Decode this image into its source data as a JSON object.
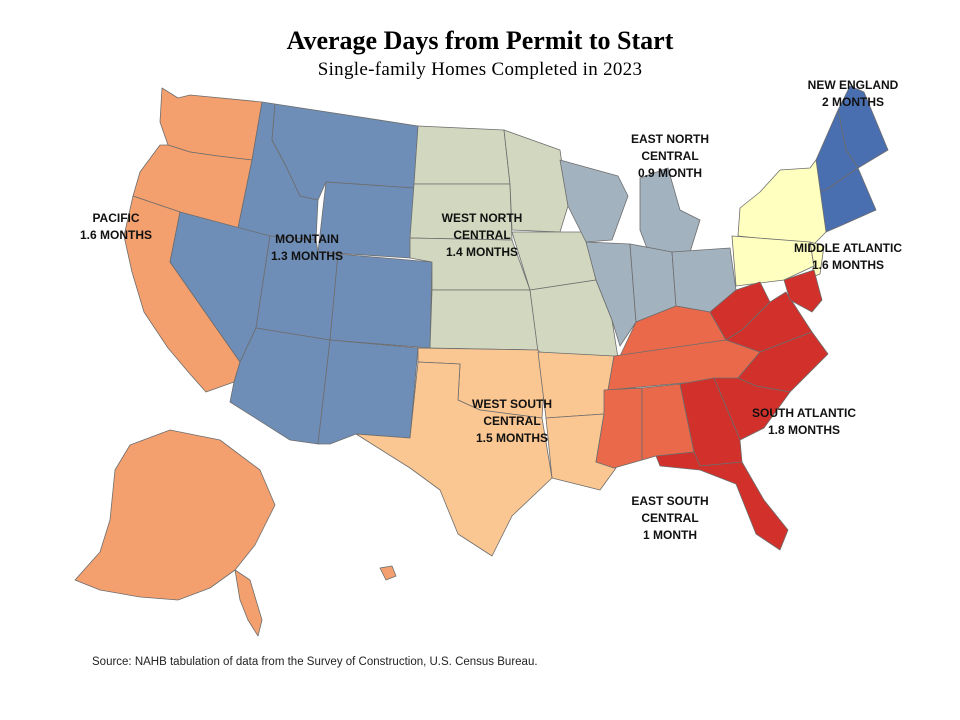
{
  "title": "Average Days from Permit to Start",
  "subtitle": "Single-family  Homes  Completed  in 2023",
  "source": "Source: NAHB tabulation of data from the Survey of Construction, U.S. Census Bureau.",
  "colors": {
    "pacific": "#F4A06E",
    "mountain": "#6E8EB8",
    "west_north_central": "#D2D8C0",
    "east_north_central": "#A3B2BF",
    "new_england": "#4A6FB0",
    "middle_atlantic": "#FFFFC0",
    "west_south_central": "#FAC691",
    "east_south_central": "#E9694A",
    "south_atlantic": "#D2302A"
  },
  "regions": {
    "pacific": {
      "name": "PACIFIC",
      "value": "1.6 MONTHS"
    },
    "mountain": {
      "name": "MOUNTAIN",
      "value": "1.3 MONTHS"
    },
    "west_north_central": {
      "name_line1": "WEST NORTH",
      "name_line2": "CENTRAL",
      "value": "1.4 MONTHS"
    },
    "east_north_central": {
      "name_line1": "EAST NORTH",
      "name_line2": "CENTRAL",
      "value": "0.9 MONTH"
    },
    "new_england": {
      "name": "NEW ENGLAND",
      "value": "2 MONTHS"
    },
    "middle_atlantic": {
      "name": "MIDDLE ATLANTIC",
      "value": "1.6 MONTHS"
    },
    "west_south_central": {
      "name_line1": "WEST SOUTH",
      "name_line2": "CENTRAL",
      "value": "1.5 MONTHS"
    },
    "east_south_central": {
      "name_line1": "EAST SOUTH",
      "name_line2": "CENTRAL",
      "value": "1 MONTH"
    },
    "south_atlantic": {
      "name": "SOUTH ATLANTIC",
      "value": "1.8 MONTHS"
    }
  }
}
